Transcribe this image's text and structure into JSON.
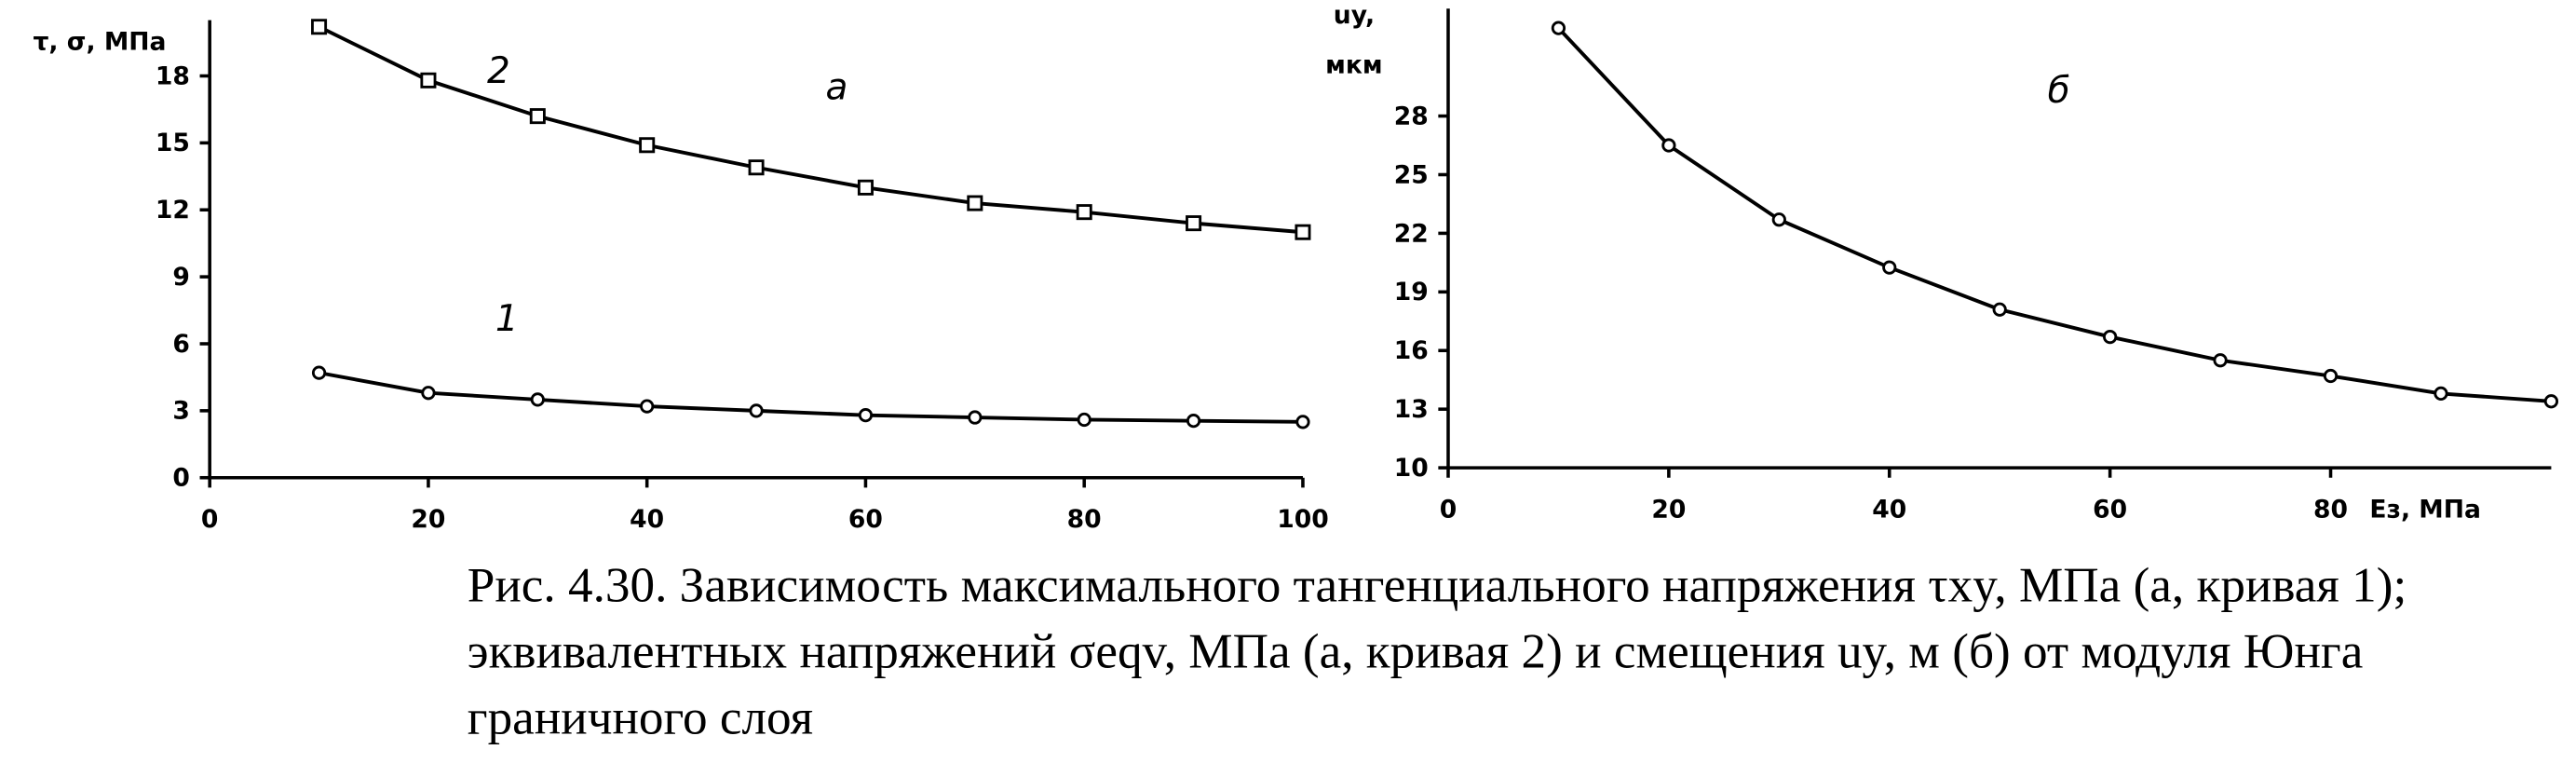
{
  "chart_data": [
    {
      "type": "line",
      "panel_label": "а",
      "y_label": "τ, σ, МПа",
      "x": [
        10,
        20,
        30,
        40,
        50,
        60,
        70,
        80,
        90,
        100
      ],
      "series": [
        {
          "name": "2",
          "color": "#000000",
          "marker": "square",
          "values": [
            20.2,
            17.8,
            16.2,
            14.9,
            13.9,
            13.0,
            12.3,
            11.9,
            11.4,
            11.0
          ]
        },
        {
          "name": "1",
          "color": "#000000",
          "marker": "circle",
          "values": [
            4.7,
            3.8,
            3.5,
            3.2,
            3.0,
            2.8,
            2.7,
            2.6,
            2.55,
            2.5
          ]
        }
      ],
      "xlim": [
        0,
        100
      ],
      "xticks": [
        0,
        20,
        40,
        60,
        80,
        100
      ],
      "ylim": [
        0,
        20.5
      ],
      "yticks": [
        0,
        3,
        6,
        9,
        12,
        15,
        18
      ]
    },
    {
      "type": "line",
      "panel_label": "б",
      "y_label": [
        "uy,",
        "мкм"
      ],
      "x_label": "Eз, МПа",
      "x": [
        10,
        20,
        30,
        40,
        50,
        60,
        70,
        80,
        90,
        100
      ],
      "series": [
        {
          "color": "#000000",
          "marker": "circle",
          "values": [
            32.5,
            26.5,
            22.7,
            20.25,
            18.1,
            16.7,
            15.5,
            14.7,
            13.8,
            13.4
          ]
        }
      ],
      "xlim": [
        0,
        100
      ],
      "xticks": [
        0,
        20,
        40,
        60,
        80
      ],
      "ylim": [
        10,
        33.5
      ],
      "yticks": [
        10,
        13,
        16,
        19,
        22,
        25,
        28
      ]
    }
  ],
  "caption": [
    "Рис. 4.30. Зависимость максимального тангенциального напряжения τxy, МПа (а, кривая 1);",
    "эквивалентных напряжений σeqv, МПа (а, кривая 2) и смещения uy, м (б) от модуля Юнга",
    "граничного слоя"
  ]
}
